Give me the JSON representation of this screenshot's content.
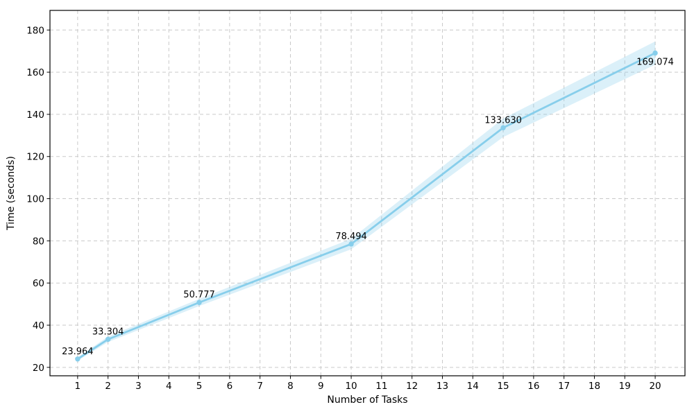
{
  "chart_data": {
    "type": "line",
    "title": "",
    "xlabel": "Number of Tasks",
    "ylabel": "Time (seconds)",
    "x": [
      1,
      2,
      5,
      10,
      15,
      20
    ],
    "y": [
      23.964,
      33.304,
      50.777,
      78.494,
      133.63,
      169.074
    ],
    "point_labels": [
      "23.964",
      "33.304",
      "50.777",
      "78.494",
      "133.630",
      "169.074"
    ],
    "label_positions": [
      "above",
      "above",
      "above",
      "above",
      "above",
      "below"
    ],
    "ci_halfwidth": [
      0.8,
      1.3,
      1.7,
      2.5,
      4.4,
      5.5
    ],
    "x_ticks": [
      1,
      2,
      3,
      4,
      5,
      6,
      7,
      8,
      9,
      10,
      11,
      12,
      13,
      14,
      15,
      16,
      17,
      18,
      19,
      20
    ],
    "y_ticks": [
      20,
      40,
      60,
      80,
      100,
      120,
      140,
      160,
      180
    ],
    "xlim": [
      0.09,
      20.98
    ],
    "ylim": [
      16.0,
      189.3
    ],
    "grid": true,
    "grid_style": "dashed",
    "legend_position": "none",
    "colors": {
      "line": "#87CEEB",
      "marker": "#87CEEB",
      "band": "rgba(135,206,235,0.30)",
      "grid": "#c9c9c9",
      "spine": "#000000",
      "text": "#000000"
    }
  }
}
